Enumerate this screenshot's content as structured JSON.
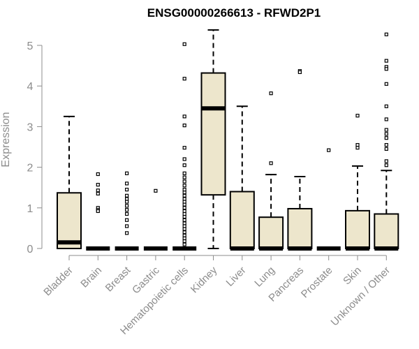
{
  "chart_data": {
    "type": "box",
    "title": "ENSG00000266613 - RFWD2P1",
    "ylabel": "Expression",
    "xlabel": "",
    "ylim": [
      0,
      5.5
    ],
    "yticks": [
      "0",
      "1",
      "2",
      "3",
      "4",
      "5"
    ],
    "box_fill": "#ede6cc",
    "categories": [
      "Bladder",
      "Brain",
      "Breast",
      "Gastric",
      "Hematopoietic cells",
      "Kidney",
      "Liver",
      "Lung",
      "Pancreas",
      "Prostate",
      "Skin",
      "Unknown / Other"
    ],
    "boxes": [
      {
        "q1": 0.0,
        "median": 0.15,
        "q3": 1.37,
        "whisker_low": 0.0,
        "whisker_high": 3.25,
        "outliers": []
      },
      {
        "q1": 0.0,
        "median": 0.0,
        "q3": 0.0,
        "whisker_low": 0.0,
        "whisker_high": 0.0,
        "outliers": [
          1.83,
          1.57,
          1.43,
          1.35,
          1.0,
          0.95,
          0.92
        ]
      },
      {
        "q1": 0.0,
        "median": 0.0,
        "q3": 0.0,
        "whisker_low": 0.0,
        "whisker_high": 0.0,
        "outliers": [
          1.85,
          1.6,
          1.45,
          1.3,
          1.22,
          1.15,
          1.05,
          0.95,
          0.85,
          0.7,
          0.55,
          0.38
        ]
      },
      {
        "q1": 0.0,
        "median": 0.0,
        "q3": 0.0,
        "whisker_low": 0.0,
        "whisker_high": 0.0,
        "outliers": [
          1.42
        ]
      },
      {
        "q1": 0.0,
        "median": 0.0,
        "q3": 0.0,
        "whisker_low": 0.0,
        "whisker_high": 0.0,
        "outliers": [
          5.03,
          4.18,
          3.25,
          3.03,
          2.48,
          2.2,
          2.05,
          1.85,
          1.75,
          1.65,
          1.55,
          1.45,
          1.38,
          1.3,
          1.22,
          1.15,
          1.08,
          1.0,
          0.92,
          0.85,
          0.78,
          0.7,
          0.62,
          0.55,
          0.48,
          0.4,
          0.32,
          0.25,
          0.18,
          0.1
        ]
      },
      {
        "q1": 1.32,
        "median": 3.45,
        "q3": 4.32,
        "whisker_low": 0.0,
        "whisker_high": 5.38,
        "outliers": []
      },
      {
        "q1": 0.0,
        "median": 0.0,
        "q3": 1.4,
        "whisker_low": 0.0,
        "whisker_high": 3.5,
        "outliers": []
      },
      {
        "q1": 0.0,
        "median": 0.0,
        "q3": 0.77,
        "whisker_low": 0.0,
        "whisker_high": 1.82,
        "outliers": [
          3.82,
          2.1
        ]
      },
      {
        "q1": 0.0,
        "median": 0.0,
        "q3": 0.98,
        "whisker_low": 0.0,
        "whisker_high": 1.77,
        "outliers": [
          4.37,
          4.34
        ]
      },
      {
        "q1": 0.0,
        "median": 0.0,
        "q3": 0.0,
        "whisker_low": 0.0,
        "whisker_high": 0.0,
        "outliers": [
          2.42
        ]
      },
      {
        "q1": 0.0,
        "median": 0.0,
        "q3": 0.93,
        "whisker_low": 0.0,
        "whisker_high": 2.03,
        "outliers": [
          3.27,
          2.55,
          2.48
        ]
      },
      {
        "q1": 0.0,
        "median": 0.0,
        "q3": 0.85,
        "whisker_low": 0.0,
        "whisker_high": 1.92,
        "outliers": [
          5.27,
          4.62,
          4.47,
          4.42,
          4.05,
          3.5,
          3.18,
          2.92,
          2.82,
          2.72,
          2.55,
          2.45,
          2.15,
          2.05
        ]
      }
    ]
  }
}
